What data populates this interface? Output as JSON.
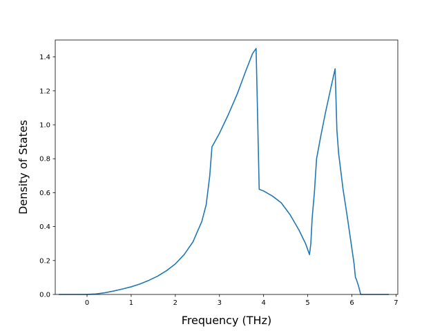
{
  "chart_data": {
    "type": "line",
    "title": "",
    "xlabel": "Frequency (THz)",
    "ylabel": "Density of States",
    "xlim": [
      -0.72,
      7.04
    ],
    "ylim": [
      0.0,
      1.5
    ],
    "grid": false,
    "xticks": [
      "0",
      "1",
      "2",
      "3",
      "4",
      "5",
      "6",
      "7"
    ],
    "yticks": [
      "0.0",
      "0.2",
      "0.4",
      "0.6",
      "0.8",
      "1.0",
      "1.2",
      "1.4"
    ],
    "series": [
      {
        "color": "#1f77b4",
        "x": [
          -0.64,
          0.0,
          0.2,
          0.4,
          0.6,
          0.8,
          1.0,
          1.2,
          1.4,
          1.6,
          1.8,
          2.0,
          2.2,
          2.4,
          2.6,
          2.7,
          2.78,
          2.83,
          3.0,
          3.2,
          3.4,
          3.6,
          3.75,
          3.83,
          3.86,
          3.9,
          4.0,
          4.2,
          4.4,
          4.6,
          4.8,
          4.95,
          5.04,
          5.07,
          5.1,
          5.15,
          5.2,
          5.3,
          5.4,
          5.5,
          5.62,
          5.64,
          5.66,
          5.7,
          5.8,
          5.9,
          6.0,
          6.05,
          6.08,
          6.1,
          6.15,
          6.2,
          6.84
        ],
        "y": [
          0.0,
          0.0,
          0.003,
          0.01,
          0.02,
          0.032,
          0.045,
          0.062,
          0.083,
          0.108,
          0.14,
          0.18,
          0.235,
          0.31,
          0.43,
          0.53,
          0.7,
          0.87,
          0.95,
          1.06,
          1.18,
          1.32,
          1.42,
          1.45,
          1.1,
          0.62,
          0.61,
          0.58,
          0.54,
          0.47,
          0.38,
          0.3,
          0.235,
          0.3,
          0.45,
          0.6,
          0.8,
          0.94,
          1.07,
          1.19,
          1.33,
          1.15,
          0.97,
          0.83,
          0.62,
          0.45,
          0.27,
          0.18,
          0.1,
          0.09,
          0.05,
          0.0,
          0.0
        ]
      }
    ]
  }
}
